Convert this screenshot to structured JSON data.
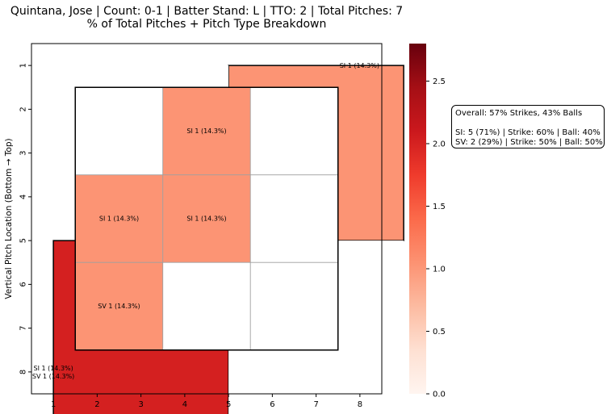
{
  "title": {
    "line1": "Quintana, Jose | Count: 0-1 | Batter Stand: L | TTO: 2 | Total Pitches: 7",
    "line2": "% of Total Pitches + Pitch Type Breakdown"
  },
  "summary": {
    "overall": "Overall: 57% Strikes, 43% Balls",
    "si": "SI: 5 (71%) | Strike: 60% | Ball: 40%",
    "sv": "SV: 2 (29%) | Strike: 50% | Ball: 50%"
  },
  "chart_data": {
    "type": "heatmap",
    "xlabel": "",
    "ylabel": "Vertical Pitch Location (Bottom → Top)",
    "x_ticks": [
      "1",
      "2",
      "3",
      "4",
      "5",
      "6",
      "7",
      "8"
    ],
    "y_ticks": [
      "1",
      "2",
      "3",
      "4",
      "5",
      "6",
      "7",
      "8"
    ],
    "colorbar": {
      "colormap": "Reds",
      "min": 0,
      "max": 2.8,
      "ticks": [
        "0.0",
        "0.5",
        "1.0",
        "1.5",
        "2.0",
        "2.5"
      ]
    },
    "zones": [
      {
        "id": "outer-top-right",
        "x_range": [
          5,
          8
        ],
        "y_range": [
          1,
          4
        ],
        "value": 1,
        "color": "#fc9474",
        "label": "SI 1 (14.3%)"
      },
      {
        "id": "outer-top-left",
        "x_range": [
          1,
          4
        ],
        "y_range": [
          1,
          4
        ],
        "value": 0,
        "color": "#ffffff",
        "label": ""
      },
      {
        "id": "outer-bottom-left",
        "x_range": [
          1,
          4
        ],
        "y_range": [
          5,
          8
        ],
        "value": 2,
        "color": "#d42020",
        "label": "SI 1 (14.3%)\nSV 1 (14.3%)"
      },
      {
        "id": "outer-bottom-right",
        "x_range": [
          5,
          8
        ],
        "y_range": [
          5,
          8
        ],
        "value": 0,
        "color": "#ffffff",
        "label": ""
      }
    ],
    "inner_grid": [
      {
        "row": 1,
        "col": 1,
        "value": 0,
        "label": ""
      },
      {
        "row": 1,
        "col": 2,
        "value": 1,
        "label": "SI 1 (14.3%)"
      },
      {
        "row": 1,
        "col": 3,
        "value": 0,
        "label": ""
      },
      {
        "row": 2,
        "col": 1,
        "value": 1,
        "label": "SI 1 (14.3%)"
      },
      {
        "row": 2,
        "col": 2,
        "value": 1,
        "label": "SI 1 (14.3%)"
      },
      {
        "row": 2,
        "col": 3,
        "value": 0,
        "label": ""
      },
      {
        "row": 3,
        "col": 1,
        "value": 1,
        "label": "SV 1 (14.3%)"
      },
      {
        "row": 3,
        "col": 2,
        "value": 0,
        "label": ""
      },
      {
        "row": 3,
        "col": 3,
        "value": 0,
        "label": ""
      }
    ],
    "inner_color": "#fc9474"
  }
}
